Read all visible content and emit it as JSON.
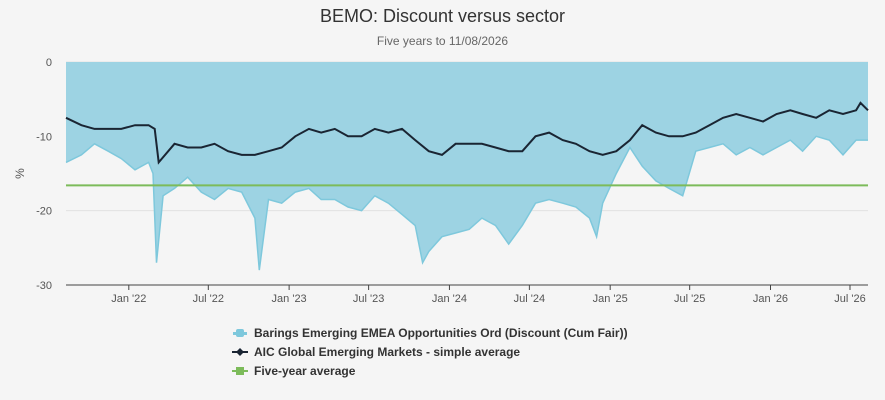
{
  "chart_data": {
    "type": "area",
    "title": "BEMO: Discount versus sector",
    "subtitle": "Five years to 11/08/2026",
    "ylabel": "%",
    "ylim": [
      -30,
      0
    ],
    "yticks": [
      "0",
      "-10",
      "-20",
      "-30"
    ],
    "xlim": [
      "2021-08-11",
      "2026-08-11"
    ],
    "xticks": [
      {
        "label": "Jan '22",
        "date": "2022-01-01"
      },
      {
        "label": "Jul '22",
        "date": "2022-07-01"
      },
      {
        "label": "Jan '23",
        "date": "2023-01-01"
      },
      {
        "label": "Jul '23",
        "date": "2023-07-01"
      },
      {
        "label": "Jan '24",
        "date": "2024-01-01"
      },
      {
        "label": "Jul '24",
        "date": "2024-07-01"
      },
      {
        "label": "Jan '25",
        "date": "2025-01-01"
      },
      {
        "label": "Jul '25",
        "date": "2025-07-01"
      },
      {
        "label": "Jan '26",
        "date": "2026-01-01"
      },
      {
        "label": "Jul '26",
        "date": "2026-07-01"
      }
    ],
    "grid": true,
    "legend_position": "bottom",
    "series": [
      {
        "name": "Barings Emerging EMEA Opportunities Ord (Discount (Cum Fair))",
        "type": "area",
        "color": "#7ec8dc",
        "fill": "#9dd3e3",
        "x": [
          "2021-08-11",
          "2021-09-15",
          "2021-10-15",
          "2021-11-15",
          "2021-12-15",
          "2022-01-15",
          "2022-02-15",
          "2022-02-25",
          "2022-03-05",
          "2022-03-20",
          "2022-04-15",
          "2022-05-15",
          "2022-06-15",
          "2022-07-15",
          "2022-08-15",
          "2022-09-15",
          "2022-10-15",
          "2022-10-25",
          "2022-11-15",
          "2022-12-15",
          "2023-01-15",
          "2023-02-15",
          "2023-03-15",
          "2023-04-15",
          "2023-05-15",
          "2023-06-15",
          "2023-07-15",
          "2023-08-15",
          "2023-09-15",
          "2023-10-15",
          "2023-11-01",
          "2023-11-15",
          "2023-12-15",
          "2024-01-15",
          "2024-02-15",
          "2024-03-15",
          "2024-04-15",
          "2024-05-15",
          "2024-06-15",
          "2024-07-15",
          "2024-08-15",
          "2024-09-15",
          "2024-10-15",
          "2024-11-15",
          "2024-12-01",
          "2024-12-15",
          "2025-01-15",
          "2025-02-15",
          "2025-03-15",
          "2025-04-15",
          "2025-05-15",
          "2025-06-15",
          "2025-07-15",
          "2025-08-15",
          "2025-09-15",
          "2025-10-15",
          "2025-11-15",
          "2025-12-15",
          "2026-01-15",
          "2026-02-15",
          "2026-03-15",
          "2026-04-15",
          "2026-05-15",
          "2026-06-15",
          "2026-07-15",
          "2026-08-11"
        ],
        "y": [
          -13.5,
          -12.5,
          -11.0,
          -12.0,
          -13.0,
          -14.5,
          -13.5,
          -15.0,
          -27.0,
          -18.0,
          -17.0,
          -15.5,
          -17.5,
          -18.5,
          -17.0,
          -17.5,
          -21.0,
          -28.0,
          -18.5,
          -19.0,
          -17.5,
          -17.0,
          -18.5,
          -18.5,
          -19.5,
          -20.0,
          -18.0,
          -19.0,
          -20.5,
          -22.0,
          -27.0,
          -25.5,
          -23.5,
          -23.0,
          -22.5,
          -21.0,
          -22.0,
          -24.5,
          -22.0,
          -19.0,
          -18.5,
          -19.0,
          -19.5,
          -21.0,
          -23.5,
          -19.0,
          -15.0,
          -11.5,
          -14.0,
          -16.0,
          -17.0,
          -18.0,
          -12.0,
          -11.5,
          -11.0,
          -12.5,
          -11.5,
          -12.5,
          -11.5,
          -10.5,
          -12.0,
          -10.0,
          -10.5,
          -12.5,
          -10.5,
          -10.5
        ]
      },
      {
        "name": "AIC Global Emerging Markets - simple average",
        "type": "line",
        "color": "#1a2533",
        "x": [
          "2021-08-11",
          "2021-09-15",
          "2021-10-15",
          "2021-11-15",
          "2021-12-15",
          "2022-01-15",
          "2022-02-15",
          "2022-03-01",
          "2022-03-10",
          "2022-04-15",
          "2022-05-15",
          "2022-06-15",
          "2022-07-15",
          "2022-08-15",
          "2022-09-15",
          "2022-10-15",
          "2022-11-15",
          "2022-12-15",
          "2023-01-15",
          "2023-02-15",
          "2023-03-15",
          "2023-04-15",
          "2023-05-15",
          "2023-06-15",
          "2023-07-15",
          "2023-08-15",
          "2023-09-15",
          "2023-10-15",
          "2023-11-15",
          "2023-12-15",
          "2024-01-15",
          "2024-02-15",
          "2024-03-15",
          "2024-04-15",
          "2024-05-15",
          "2024-06-15",
          "2024-07-15",
          "2024-08-15",
          "2024-09-15",
          "2024-10-15",
          "2024-11-15",
          "2024-12-15",
          "2025-01-15",
          "2025-02-15",
          "2025-03-15",
          "2025-04-15",
          "2025-05-15",
          "2025-06-15",
          "2025-07-15",
          "2025-08-15",
          "2025-09-15",
          "2025-10-15",
          "2025-11-15",
          "2025-12-15",
          "2026-01-15",
          "2026-02-15",
          "2026-03-15",
          "2026-04-15",
          "2026-05-15",
          "2026-06-15",
          "2026-07-15",
          "2026-07-25",
          "2026-08-11"
        ],
        "y": [
          -7.5,
          -8.5,
          -9.0,
          -9.0,
          -9.0,
          -8.5,
          -8.5,
          -9.0,
          -13.5,
          -11.0,
          -11.5,
          -11.5,
          -11.0,
          -12.0,
          -12.5,
          -12.5,
          -12.0,
          -11.5,
          -10.0,
          -9.0,
          -9.5,
          -9.0,
          -10.0,
          -10.0,
          -9.0,
          -9.5,
          -9.0,
          -10.5,
          -12.0,
          -12.5,
          -11.0,
          -11.0,
          -11.0,
          -11.5,
          -12.0,
          -12.0,
          -10.0,
          -9.5,
          -10.5,
          -11.0,
          -12.0,
          -12.5,
          -12.0,
          -10.5,
          -8.5,
          -9.5,
          -10.0,
          -10.0,
          -9.5,
          -8.5,
          -7.5,
          -7.0,
          -7.5,
          -8.0,
          -7.0,
          -6.5,
          -7.0,
          -7.5,
          -6.5,
          -7.0,
          -6.5,
          -5.5,
          -6.5
        ]
      },
      {
        "name": "Five-year average",
        "type": "line",
        "color": "#7cbb5a",
        "x": [
          "2021-08-11",
          "2026-08-11"
        ],
        "y": [
          -16.6,
          -16.6
        ]
      }
    ]
  }
}
